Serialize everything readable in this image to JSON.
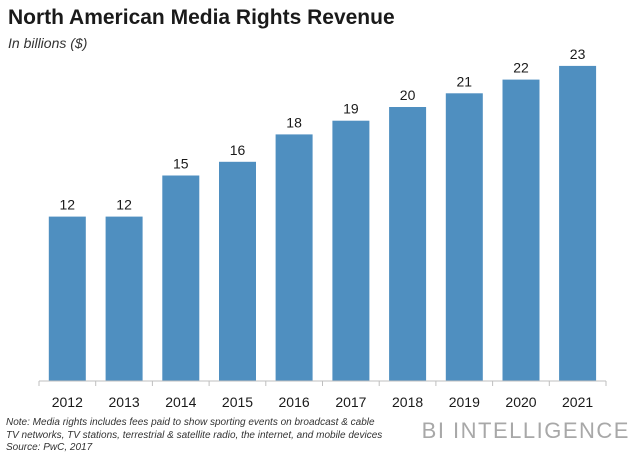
{
  "header": {
    "title": "North American Media Rights Revenue",
    "subtitle": "In billions ($)"
  },
  "chart_data": {
    "type": "bar",
    "title": "North American Media Rights Revenue",
    "subtitle": "In billions ($)",
    "categories": [
      "2012",
      "2013",
      "2014",
      "2015",
      "2016",
      "2017",
      "2018",
      "2019",
      "2020",
      "2021"
    ],
    "values": [
      12,
      12,
      15,
      16,
      18,
      19,
      20,
      21,
      22,
      23
    ],
    "data_labels": [
      "12",
      "12",
      "15",
      "16",
      "18",
      "19",
      "20",
      "21",
      "22",
      "23"
    ],
    "ylim": [
      0,
      23.5
    ],
    "grid": false,
    "legend": "none",
    "bar_color": "#4f8fc0"
  },
  "footer": {
    "note_line1": "Note: Media rights includes fees paid to show sporting events on broadcast & cable",
    "note_line2": "TV networks, TV stations, terrestrial & satellite radio, the internet, and mobile devices",
    "source": "Source: PwC, 2017",
    "brand": "BI INTELLIGENCE"
  },
  "colors": {
    "bar": "#4f8fc0",
    "axis": "#bfbfbf",
    "brand": "#a8a8a8"
  }
}
